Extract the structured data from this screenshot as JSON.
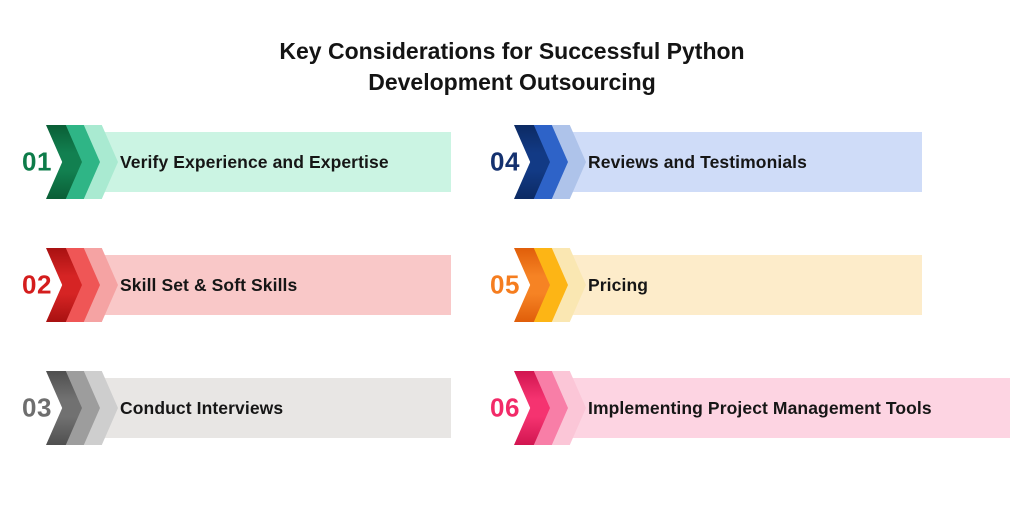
{
  "title": {
    "line1": "Key Considerations for Successful Python",
    "line2": "Development Outsourcing"
  },
  "items": [
    {
      "number": "01",
      "label": "Verify Experience and Expertise",
      "colors": {
        "number": "#0d7c49",
        "chevron_front": "#128050",
        "chevron_front_deep": "#0a5e36",
        "chevron_mid": "#2fb586",
        "chevron_back": "#a9ead1",
        "banner": "#cbf4e3"
      }
    },
    {
      "number": "02",
      "label": "Skill Set & Soft Skills",
      "colors": {
        "number": "#d41d1d",
        "chevron_front": "#d62424",
        "chevron_front_deep": "#a81111",
        "chevron_mid": "#ef5656",
        "chevron_back": "#f5a3a3",
        "banner": "#f9c8c8"
      }
    },
    {
      "number": "03",
      "label": "Conduct Interviews",
      "colors": {
        "number": "#6e6e6e",
        "chevron_front": "#717171",
        "chevron_front_deep": "#4f4f4f",
        "chevron_mid": "#9d9d9d",
        "chevron_back": "#cecece",
        "banner": "#e8e6e4"
      }
    },
    {
      "number": "04",
      "label": "Reviews and Testimonials",
      "colors": {
        "number": "#14316f",
        "chevron_front": "#123a85",
        "chevron_front_deep": "#0c2a63",
        "chevron_mid": "#2e63c8",
        "chevron_back": "#aec3ea",
        "banner": "#cfdcf8"
      }
    },
    {
      "number": "05",
      "label": "Pricing",
      "colors": {
        "number": "#f57d1f",
        "chevron_front": "#f68324",
        "chevron_front_deep": "#e05e0a",
        "chevron_mid": "#fdb515",
        "chevron_back": "#fae7b2",
        "banner": "#fdecca"
      }
    },
    {
      "number": "06",
      "label": "Implementing Project Management Tools",
      "colors": {
        "number": "#f22a68",
        "chevron_front": "#f53370",
        "chevron_front_deep": "#d11550",
        "chevron_mid": "#f87ea7",
        "chevron_back": "#fbc6d7",
        "banner": "#fdd4e2"
      }
    }
  ]
}
